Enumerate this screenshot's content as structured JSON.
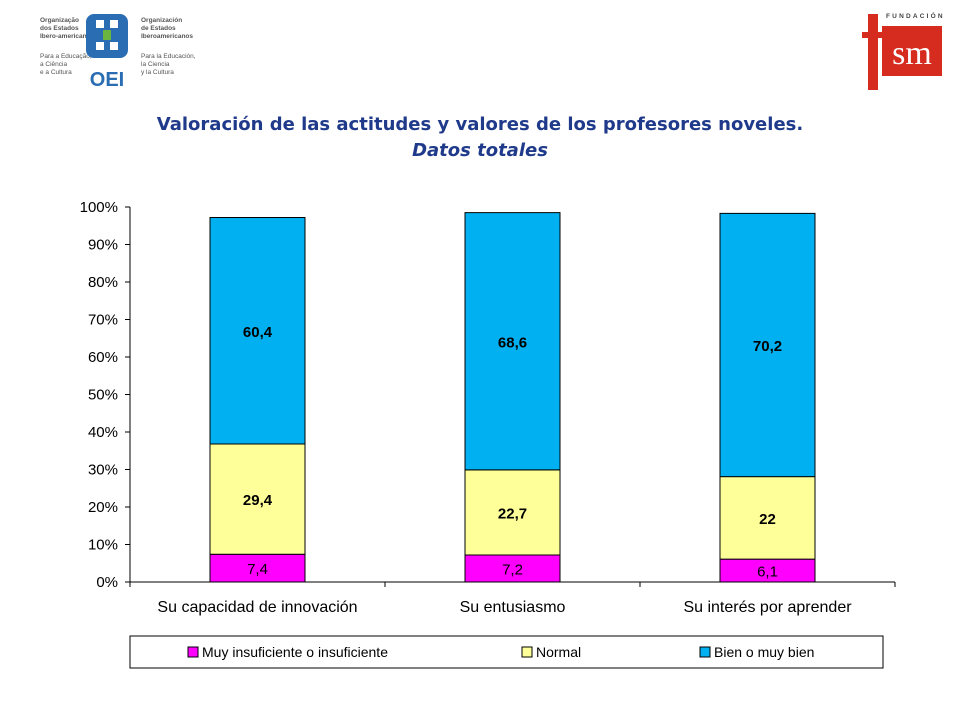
{
  "logos": {
    "oei": {
      "left_text": [
        "Organização",
        "dos Estados",
        "Ibero-americanos",
        "",
        "Para a Educação,",
        "a Ciência",
        "e a Cultura"
      ],
      "right_text": [
        "Organización",
        "de Estados",
        "Iberoamericanos",
        "",
        "Para la Educación,",
        "la Ciencia",
        "y la Cultura"
      ],
      "wordmark": "OEI",
      "color": "#2b6db3",
      "accent": "#6bb43f"
    },
    "fsm": {
      "top_text": "FUNDACIÓN",
      "wordmark": "sm",
      "color": "#d62b1f"
    }
  },
  "header": {
    "title": "Valoración  de las actitudes y valores de los profesores noveles.",
    "subtitle": "Datos totales"
  },
  "chart_data": {
    "type": "bar",
    "stacked": "percent",
    "categories": [
      "Su capacidad de innovación",
      "Su entusiasmo",
      "Su interés por aprender"
    ],
    "series": [
      {
        "name": "Muy insuficiente o insuficiente",
        "values": [
          7.4,
          7.2,
          6.1
        ],
        "labels": [
          "7,4",
          "7,2",
          "6,1"
        ],
        "color": "#ff00ff"
      },
      {
        "name": "Normal",
        "values": [
          29.4,
          22.7,
          22
        ],
        "labels": [
          "29,4",
          "22,7",
          "22"
        ],
        "color": "#ffff99"
      },
      {
        "name": "Bien o muy bien",
        "values": [
          60.4,
          68.6,
          70.2
        ],
        "labels": [
          "60,4",
          "68,6",
          "70,2"
        ],
        "color": "#00b0f0"
      }
    ],
    "yticks": [
      "0%",
      "10%",
      "20%",
      "30%",
      "40%",
      "50%",
      "60%",
      "70%",
      "80%",
      "90%",
      "100%"
    ],
    "ylim": [
      0,
      100
    ],
    "grid": false,
    "legend": "bottom"
  }
}
